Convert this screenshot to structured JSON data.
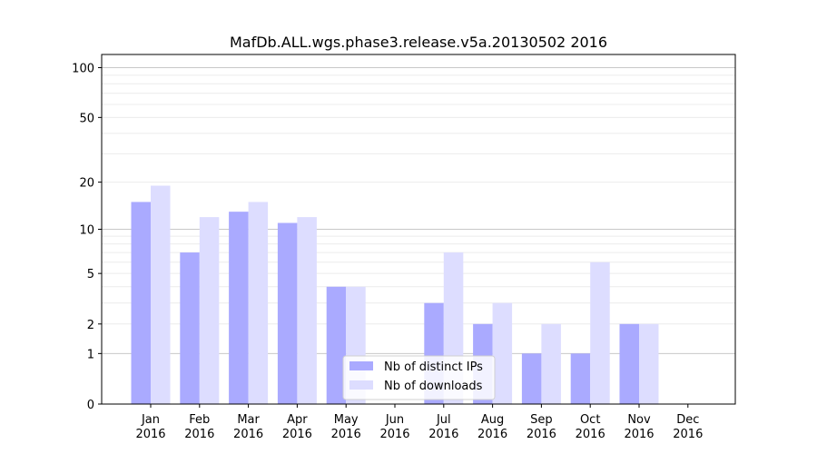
{
  "chart_data": {
    "type": "bar",
    "title": "MafDb.ALL.wgs.phase3.release.v5a.20130502 2016",
    "xlabel": "",
    "ylabel": "",
    "categories": [
      {
        "month": "Jan",
        "year": "2016"
      },
      {
        "month": "Feb",
        "year": "2016"
      },
      {
        "month": "Mar",
        "year": "2016"
      },
      {
        "month": "Apr",
        "year": "2016"
      },
      {
        "month": "May",
        "year": "2016"
      },
      {
        "month": "Jun",
        "year": "2016"
      },
      {
        "month": "Jul",
        "year": "2016"
      },
      {
        "month": "Aug",
        "year": "2016"
      },
      {
        "month": "Sep",
        "year": "2016"
      },
      {
        "month": "Oct",
        "year": "2016"
      },
      {
        "month": "Nov",
        "year": "2016"
      },
      {
        "month": "Dec",
        "year": "2016"
      }
    ],
    "series": [
      {
        "name": "Nb of distinct IPs",
        "color": "#aaaaff",
        "values": [
          15,
          7,
          13,
          11,
          4,
          0,
          3,
          2,
          1,
          1,
          2,
          0
        ]
      },
      {
        "name": "Nb of downloads",
        "color": "#ddddff",
        "values": [
          19,
          12,
          15,
          12,
          4,
          0,
          7,
          3,
          2,
          6,
          2,
          0
        ]
      }
    ],
    "yscale": "log(1+y)",
    "ylim": [
      0,
      120
    ],
    "yticks": [
      "0",
      "1",
      "2",
      "5",
      "10",
      "20",
      "50",
      "100"
    ],
    "grid": true,
    "legend": "lower-center"
  }
}
